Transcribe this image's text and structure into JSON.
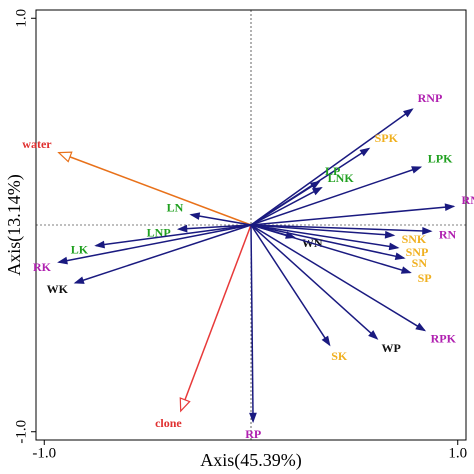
{
  "chart_data": {
    "type": "biplot",
    "x_label": "Axis(45.39%)",
    "y_label": "Axis(13.14%)",
    "xlim": [
      -1.04,
      1.04
    ],
    "ylim": [
      -1.04,
      1.04
    ],
    "xticks": [
      {
        "value": -1,
        "label": "-1.0"
      },
      {
        "value": 1,
        "label": "1.0"
      }
    ],
    "yticks": [
      {
        "value": -1,
        "label": "-1.0"
      },
      {
        "value": 1,
        "label": "1.0"
      }
    ],
    "zero_lines": true,
    "series": [
      {
        "name": "water",
        "x": -0.93,
        "y": 0.35,
        "color": "#e8711a",
        "label_color": "#e03030",
        "head": "open"
      },
      {
        "name": "clone",
        "x": -0.34,
        "y": -0.9,
        "color": "#e83a3a",
        "label_color": "#e03030",
        "head": "open"
      },
      {
        "name": "RNP",
        "x": 0.78,
        "y": 0.56,
        "color": "#1a1a80",
        "label_color": "#b020b0",
        "head": "filled"
      },
      {
        "name": "SPK",
        "x": 0.57,
        "y": 0.37,
        "color": "#1a1a80",
        "label_color": "#f0b020",
        "head": "filled"
      },
      {
        "name": "LPK",
        "x": 0.82,
        "y": 0.28,
        "color": "#1a1a80",
        "label_color": "#20a020",
        "head": "filled"
      },
      {
        "name": "LP",
        "x": 0.33,
        "y": 0.21,
        "color": "#1a1a80",
        "label_color": "#20a020",
        "head": "filled"
      },
      {
        "name": "LNK",
        "x": 0.34,
        "y": 0.18,
        "color": "#1a1a80",
        "label_color": "#20a020",
        "head": "filled"
      },
      {
        "name": "RNK",
        "x": 0.98,
        "y": 0.09,
        "color": "#1a1a80",
        "label_color": "#b020b0",
        "head": "filled"
      },
      {
        "name": "RN",
        "x": 0.87,
        "y": -0.03,
        "color": "#1a1a80",
        "label_color": "#b020b0",
        "head": "filled"
      },
      {
        "name": "SNK",
        "x": 0.69,
        "y": -0.05,
        "color": "#1a1a80",
        "label_color": "#f0b020",
        "head": "filled"
      },
      {
        "name": "SNP",
        "x": 0.71,
        "y": -0.11,
        "color": "#1a1a80",
        "label_color": "#f0b020",
        "head": "filled"
      },
      {
        "name": "SN",
        "x": 0.74,
        "y": -0.16,
        "color": "#1a1a80",
        "label_color": "#f0b020",
        "head": "filled"
      },
      {
        "name": "WN",
        "x": 0.21,
        "y": -0.06,
        "color": "#1a1a80",
        "label_color": "#111111",
        "head": "filled"
      },
      {
        "name": "SP",
        "x": 0.77,
        "y": -0.23,
        "color": "#1a1a80",
        "label_color": "#f0b020",
        "head": "filled"
      },
      {
        "name": "RPK",
        "x": 0.84,
        "y": -0.51,
        "color": "#1a1a80",
        "label_color": "#b020b0",
        "head": "filled"
      },
      {
        "name": "WP",
        "x": 0.61,
        "y": -0.55,
        "color": "#1a1a80",
        "label_color": "#111111",
        "head": "filled"
      },
      {
        "name": "SK",
        "x": 0.38,
        "y": -0.58,
        "color": "#1a1a80",
        "label_color": "#f0b020",
        "head": "filled"
      },
      {
        "name": "RP",
        "x": 0.01,
        "y": -0.95,
        "color": "#1a1a80",
        "label_color": "#b020b0",
        "head": "filled"
      },
      {
        "name": "LN",
        "x": -0.29,
        "y": 0.05,
        "color": "#1a1a80",
        "label_color": "#20a020",
        "head": "filled"
      },
      {
        "name": "LNP",
        "x": -0.35,
        "y": -0.02,
        "color": "#1a1a80",
        "label_color": "#20a020",
        "head": "filled"
      },
      {
        "name": "LK",
        "x": -0.75,
        "y": -0.1,
        "color": "#1a1a80",
        "label_color": "#20a020",
        "head": "filled"
      },
      {
        "name": "RK",
        "x": -0.93,
        "y": -0.18,
        "color": "#1a1a80",
        "label_color": "#b020b0",
        "head": "filled"
      },
      {
        "name": "WK",
        "x": -0.85,
        "y": -0.28,
        "color": "#1a1a80",
        "label_color": "#111111",
        "head": "filled"
      }
    ]
  }
}
